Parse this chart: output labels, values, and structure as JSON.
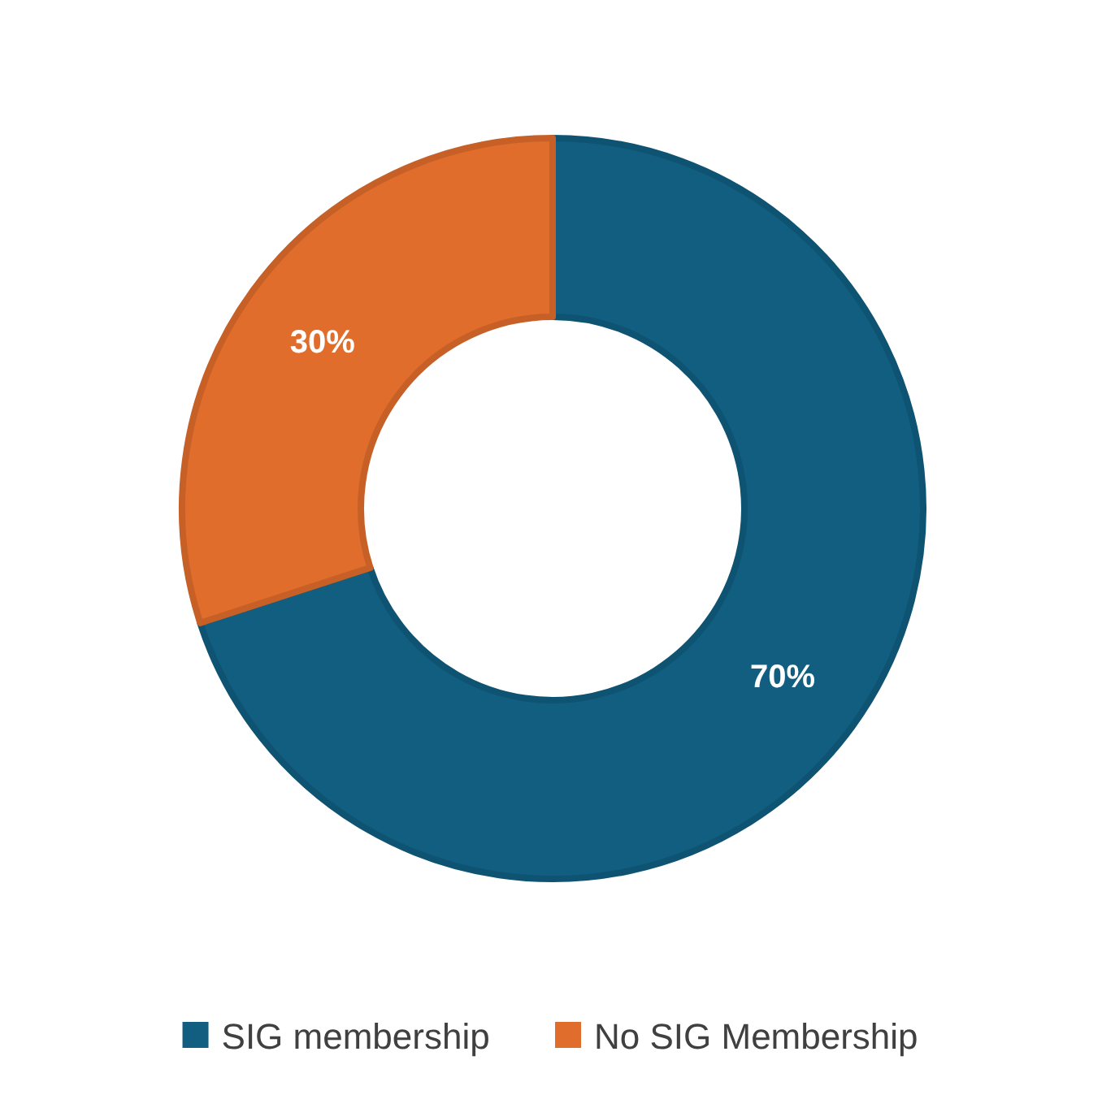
{
  "chart_data": {
    "type": "donut",
    "categories": [
      "SIG membership",
      "No SIG Membership"
    ],
    "values": [
      70,
      30
    ],
    "colors": [
      "#115e81",
      "#e06d2c"
    ],
    "value_labels": [
      "70%",
      "30%"
    ],
    "legend": "bottom"
  }
}
